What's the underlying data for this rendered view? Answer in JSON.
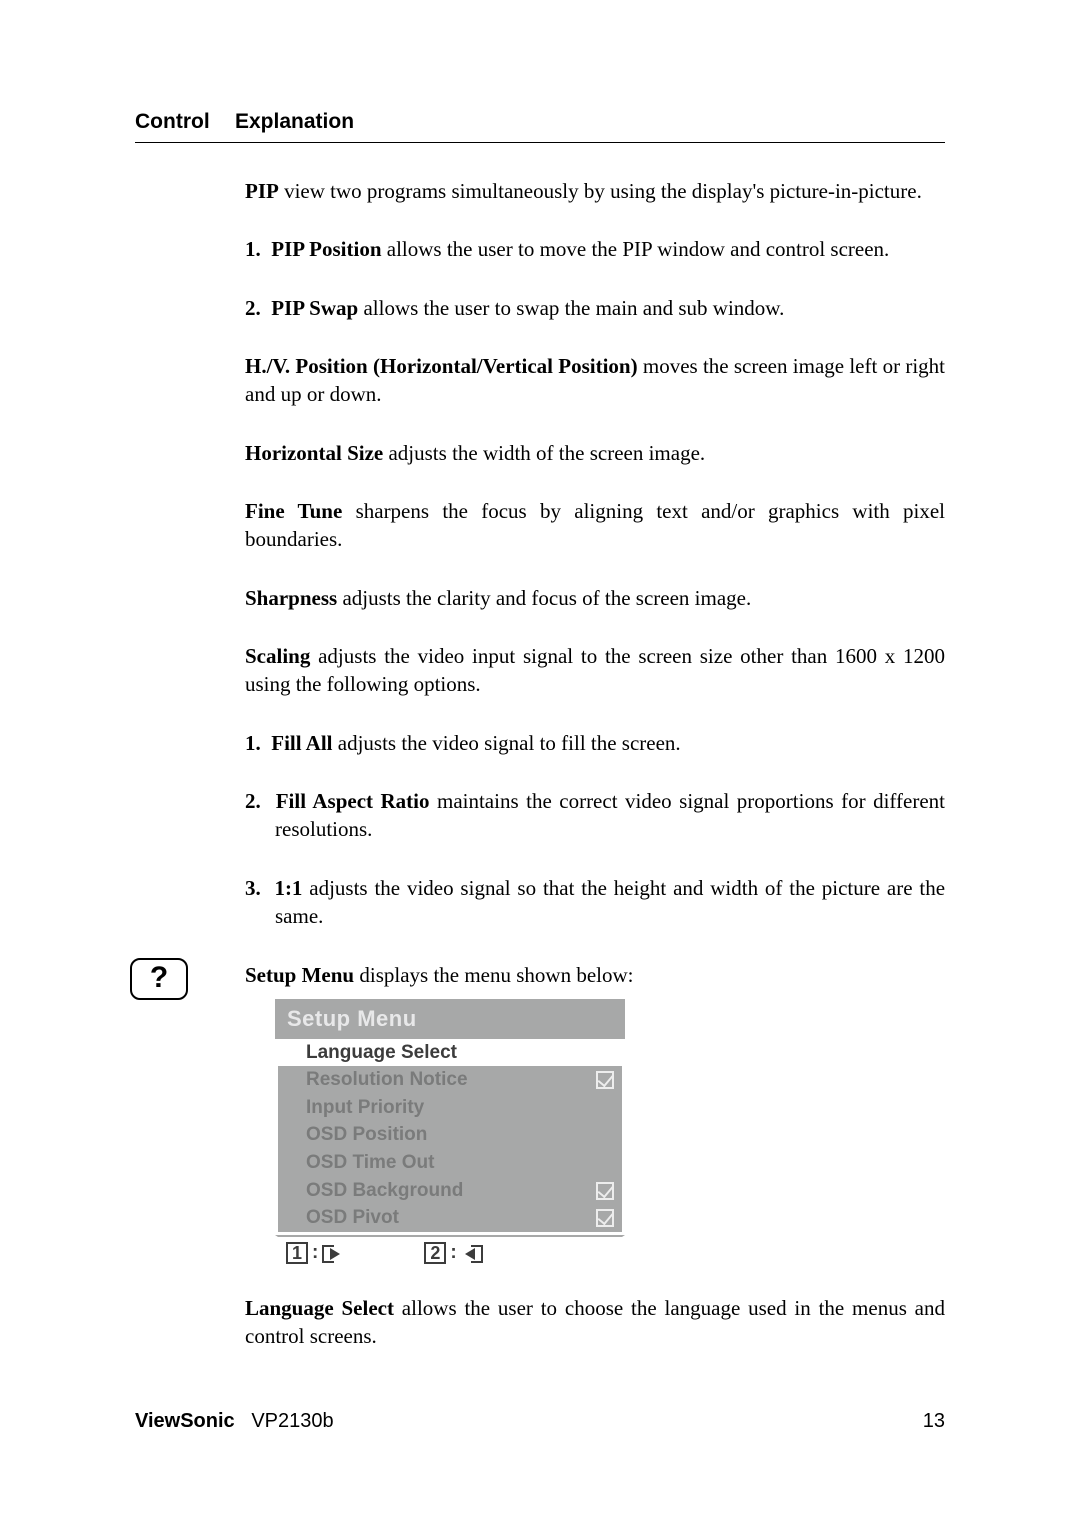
{
  "header": {
    "control": "Control",
    "explanation": "Explanation"
  },
  "pip": {
    "title": "PIP",
    "desc": " view two programs simultaneously by using the display's picture-in-picture.",
    "items": [
      {
        "num": "1.",
        "title": "PIP Position",
        "desc": " allows the user to move the PIP window and control screen."
      },
      {
        "num": "2.",
        "title": "PIP Swap",
        "desc": " allows the user to swap the main and sub window."
      }
    ]
  },
  "hv": {
    "title": "H./V. Position (Horizontal/Vertical Position)",
    "desc": " moves the screen image left or right and up or down."
  },
  "hsize": {
    "title": "Horizontal Size",
    "desc": " adjusts the width of the screen image."
  },
  "finetune": {
    "title": "Fine Tune",
    "desc": " sharpens the focus by aligning text and/or graphics with pixel boundaries."
  },
  "sharpness": {
    "title": "Sharpness",
    "desc": " adjusts the clarity and focus of the screen image."
  },
  "scaling": {
    "title": "Scaling",
    "desc": " adjusts the video input signal to the screen size other than 1600 x 1200 using the following options.",
    "items": [
      {
        "num": "1.",
        "title": "Fill All",
        "desc": " adjusts the video signal to fill the screen."
      },
      {
        "num": "2.",
        "title": "Fill Aspect Ratio",
        "desc": " maintains the correct video signal proportions for different resolutions."
      },
      {
        "num": "3.",
        "title": "1:1",
        "desc": " adjusts the video signal so that the height and width of the picture are the same."
      }
    ]
  },
  "setup": {
    "title": "Setup Menu",
    "desc": " displays the menu shown below:"
  },
  "icon": {
    "glyph": "?"
  },
  "osd": {
    "title": "Setup Menu",
    "rows": [
      {
        "label": "Language Select",
        "selected": true,
        "check": false
      },
      {
        "label": "Resolution Notice",
        "selected": false,
        "check": true
      },
      {
        "label": "Input Priority",
        "selected": false,
        "check": false
      },
      {
        "label": "OSD Position",
        "selected": false,
        "check": false
      },
      {
        "label": "OSD Time Out",
        "selected": false,
        "check": false
      },
      {
        "label": "OSD Background",
        "selected": false,
        "check": true
      },
      {
        "label": "OSD Pivot",
        "selected": false,
        "check": true
      }
    ],
    "keys": {
      "k1": "1",
      "k2": "2",
      "colon": ":"
    }
  },
  "langselect": {
    "title": "Language Select",
    "desc": " allows the user to choose the language used in the menus and control screens."
  },
  "footer": {
    "brand": "ViewSonic",
    "model": "VP2130b",
    "page": "13"
  }
}
